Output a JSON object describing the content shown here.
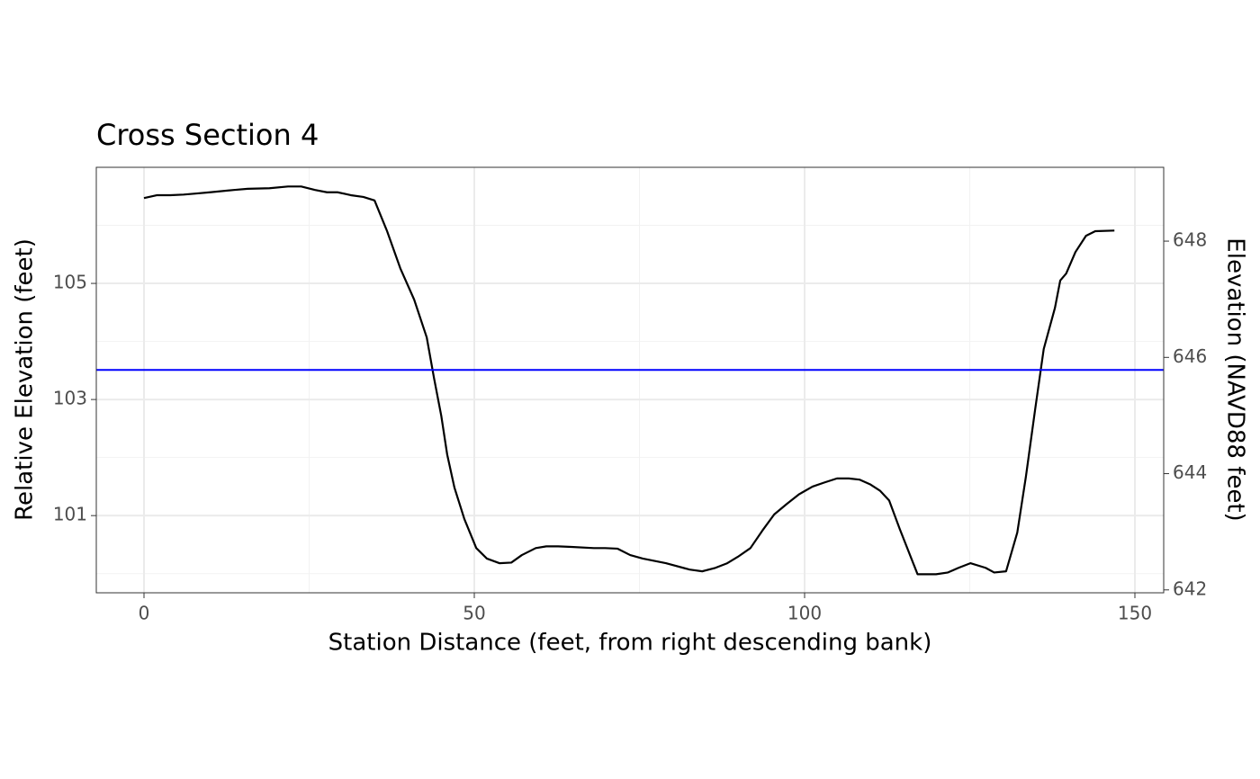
{
  "chart_data": {
    "type": "line",
    "title": "Cross Section 4",
    "x_label": "Station Distance (feet, from right descending bank)",
    "y_label": "Relative Elevation (feet)",
    "y2_label": "Elevation (NAVD88 feet)",
    "x": [
      0,
      2,
      4,
      6,
      8,
      10,
      13.6,
      15.7,
      19,
      21.8,
      23.8,
      25.9,
      27.7,
      29.3,
      31.3,
      33.2,
      34.9,
      36.8,
      38.8,
      40.9,
      42.8,
      43.9,
      45,
      45.9,
      47,
      48.5,
      50.3,
      51.9,
      53.8,
      55.6,
      57.2,
      59.3,
      60.9,
      62.7,
      64.7,
      68.1,
      69.8,
      71.7,
      73.6,
      75.5,
      79,
      82.6,
      84.5,
      86.5,
      88.3,
      89.9,
      91.8,
      93.6,
      95.4,
      97.3,
      99.2,
      101.2,
      103,
      104.9,
      106.7,
      108.3,
      109.9,
      111.4,
      112.8,
      114.4,
      117.1,
      119.9,
      121.7,
      123.3,
      125.1,
      127.4,
      128.7,
      130.5,
      132.2,
      133.5,
      134.9,
      136.2,
      137.9,
      138.7,
      139.6,
      141,
      142.6,
      144,
      146.9
    ],
    "series": [
      {
        "color": "#000000",
        "values": [
          106.47,
          106.52,
          106.52,
          106.53,
          106.55,
          106.57,
          106.61,
          106.63,
          106.64,
          106.67,
          106.67,
          106.61,
          106.57,
          106.57,
          106.52,
          106.49,
          106.43,
          105.9,
          105.26,
          104.72,
          104.07,
          103.37,
          102.72,
          102.05,
          101.48,
          100.94,
          100.44,
          100.26,
          100.18,
          100.19,
          100.32,
          100.44,
          100.47,
          100.47,
          100.46,
          100.44,
          100.44,
          100.43,
          100.32,
          100.26,
          100.18,
          100.07,
          100.04,
          100.1,
          100.18,
          100.29,
          100.44,
          100.74,
          101.02,
          101.2,
          101.37,
          101.5,
          101.57,
          101.64,
          101.64,
          101.62,
          101.54,
          101.43,
          101.26,
          100.77,
          99.99,
          99.99,
          100.02,
          100.1,
          100.18,
          100.1,
          100.02,
          100.04,
          100.71,
          101.67,
          102.83,
          103.87,
          104.58,
          105.05,
          105.17,
          105.54,
          105.82,
          105.9,
          105.91
        ]
      }
    ],
    "hline": {
      "value": 103.51,
      "color": "#0000ff"
    },
    "xlim": [
      -7.22,
      154.36
    ],
    "xticks": [
      0,
      50,
      100,
      150
    ],
    "xminor": [
      25,
      75,
      125
    ],
    "ylim": [
      99.67,
      107.0
    ],
    "yticks": [
      101,
      103,
      105
    ],
    "yminor": [
      100,
      102,
      104,
      106
    ],
    "y2lim": [
      641.95,
      649.27
    ],
    "y2ticks": [
      642,
      644,
      646,
      648
    ],
    "grid": true
  }
}
